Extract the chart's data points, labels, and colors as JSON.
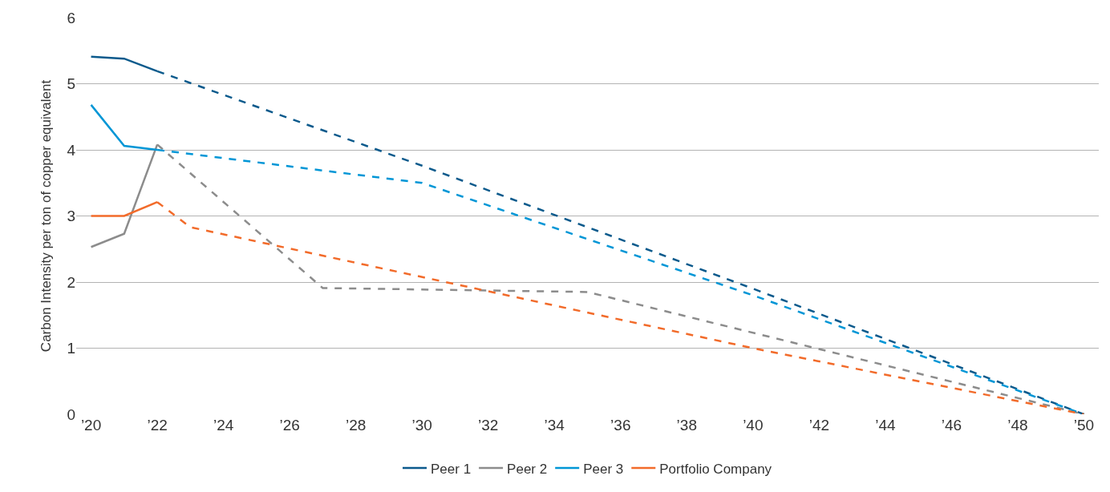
{
  "chart_data": {
    "type": "line",
    "ylabel": "Carbon Intensity per ton of copper equivalent",
    "xlim": [
      2019.55,
      2050.45
    ],
    "ylim": [
      0,
      6
    ],
    "yticks": [
      0,
      1,
      2,
      3,
      4,
      5,
      6
    ],
    "xticks": [
      {
        "value": 2020,
        "label": "’20"
      },
      {
        "value": 2022,
        "label": "’22"
      },
      {
        "value": 2024,
        "label": "’24"
      },
      {
        "value": 2026,
        "label": "’26"
      },
      {
        "value": 2028,
        "label": "’28"
      },
      {
        "value": 2030,
        "label": "’30"
      },
      {
        "value": 2032,
        "label": "’32"
      },
      {
        "value": 2034,
        "label": "’34"
      },
      {
        "value": 2036,
        "label": "’36"
      },
      {
        "value": 2038,
        "label": "’38"
      },
      {
        "value": 2040,
        "label": "’40"
      },
      {
        "value": 2042,
        "label": "’42"
      },
      {
        "value": 2044,
        "label": "’44"
      },
      {
        "value": 2046,
        "label": "’46"
      },
      {
        "value": 2048,
        "label": "’48"
      },
      {
        "value": 2050,
        "label": "’50"
      }
    ],
    "grid": "y",
    "legend": "bottom",
    "marker": "none",
    "series": [
      {
        "name": "Peer 1",
        "color": "#0b5a8c",
        "line_style": "solid",
        "x": [
          2020,
          2021,
          2022
        ],
        "values": [
          5.41,
          5.38,
          5.19
        ]
      },
      {
        "name": "Peer 2",
        "color": "#8c8c8c",
        "line_style": "solid",
        "x": [
          2020,
          2021,
          2022
        ],
        "values": [
          2.53,
          2.73,
          4.08
        ]
      },
      {
        "name": "Peer 3",
        "color": "#0096d6",
        "line_style": "solid",
        "x": [
          2020,
          2021,
          2022
        ],
        "values": [
          4.68,
          4.06,
          4.0
        ]
      },
      {
        "name": "Portfolio Company",
        "color": "#f26b2a",
        "line_style": "solid",
        "x": [
          2020,
          2021,
          2022
        ],
        "values": [
          3.0,
          3.0,
          3.21
        ]
      },
      {
        "color": "#0b5a8c",
        "line_style": "dashed",
        "x": [
          2022,
          2030,
          2040,
          2050
        ],
        "values": [
          5.19,
          3.76,
          1.9,
          0
        ]
      },
      {
        "color": "#8c8c8c",
        "line_style": "dashed",
        "x": [
          2022,
          2027,
          2035,
          2050
        ],
        "values": [
          4.08,
          1.91,
          1.85,
          0
        ]
      },
      {
        "color": "#0096d6",
        "line_style": "dashed",
        "x": [
          2022,
          2030,
          2040,
          2050
        ],
        "values": [
          4.0,
          3.5,
          1.8,
          0
        ]
      },
      {
        "color": "#f26b2a",
        "line_style": "dashed",
        "x": [
          2022,
          2023,
          2040,
          2050
        ],
        "values": [
          3.21,
          2.83,
          1.0,
          0
        ]
      }
    ]
  }
}
